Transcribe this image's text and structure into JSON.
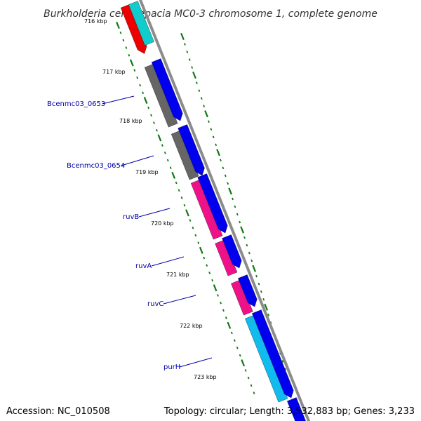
{
  "title": "Burkholderia cenocepacia MC0-3 chromosome 1, complete genome",
  "footer": {
    "accession": "Accession: NC_010508",
    "topology": "Topology: circular; Length: 3,532,883 bp; Genes: 3,233"
  },
  "scale": {
    "start_kbp": 716,
    "end_kbp": 723,
    "tick_labels": [
      "716 kbp",
      "717 kbp",
      "718 kbp",
      "719 kbp",
      "720 kbp",
      "721 kbp",
      "722 kbp",
      "723 kbp"
    ]
  },
  "gene_labels": [
    "Bcenmc03_0653",
    "Bcenmc03_0654",
    "ruvB",
    "ruvA",
    "ruvC",
    "purH"
  ],
  "colors": {
    "backbone": "#8c8c8c",
    "forward_strand": "#0000ee",
    "cds_gray": "#666666",
    "cds_magenta": "#ee1188",
    "cds_cyan": "#11bbee",
    "red": "#ee0000",
    "teal": "#11cccc",
    "tick_green": "#117711"
  }
}
